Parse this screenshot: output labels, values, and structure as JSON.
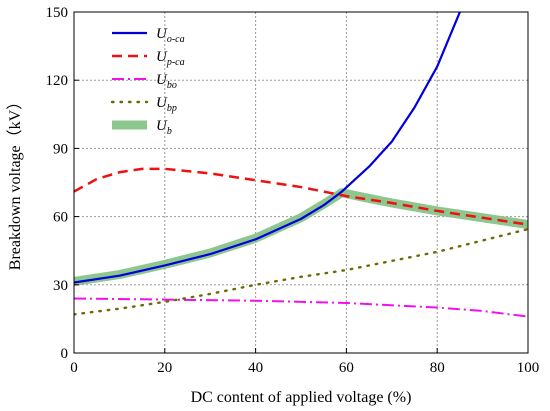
{
  "chart_data": {
    "type": "line",
    "xlabel": "DC content of applied voltage (%)",
    "ylabel": "Breakdown voltage（kV）",
    "xlim": [
      0,
      100
    ],
    "ylim": [
      0,
      150
    ],
    "x_ticks": [
      "0",
      "20",
      "40",
      "60",
      "80",
      "100"
    ],
    "y_ticks": [
      "0",
      "30",
      "60",
      "90",
      "120",
      "150"
    ],
    "grid": true,
    "legend_position": "top-left",
    "series": [
      {
        "name": "U",
        "name_sub": "o-ca",
        "color": "#0000dd",
        "style": "solid",
        "points": [
          [
            0,
            31
          ],
          [
            10,
            34
          ],
          [
            20,
            38.5
          ],
          [
            30,
            43.5
          ],
          [
            40,
            50
          ],
          [
            50,
            59
          ],
          [
            55,
            65
          ],
          [
            59,
            71
          ],
          [
            65,
            82
          ],
          [
            70,
            93
          ],
          [
            75,
            108
          ],
          [
            80,
            126
          ],
          [
            85,
            150
          ]
        ]
      },
      {
        "name": "U",
        "name_sub": "p-ca",
        "color": "#ee1111",
        "style": "dashed",
        "points": [
          [
            0,
            71
          ],
          [
            5,
            76.5
          ],
          [
            10,
            79.5
          ],
          [
            15,
            81
          ],
          [
            20,
            81
          ],
          [
            25,
            80
          ],
          [
            30,
            79
          ],
          [
            40,
            76
          ],
          [
            50,
            73
          ],
          [
            60,
            69
          ],
          [
            70,
            66
          ],
          [
            80,
            62.5
          ],
          [
            90,
            59.5
          ],
          [
            100,
            56.5
          ]
        ]
      },
      {
        "name": "U",
        "name_sub": "bo",
        "color": "#ee11ee",
        "style": "dashdot",
        "points": [
          [
            0,
            24
          ],
          [
            20,
            23.5
          ],
          [
            40,
            23
          ],
          [
            60,
            22
          ],
          [
            80,
            20
          ],
          [
            90,
            18.5
          ],
          [
            100,
            16
          ]
        ]
      },
      {
        "name": "U",
        "name_sub": "bp",
        "color": "#6b6b00",
        "style": "dotted",
        "points": [
          [
            0,
            17
          ],
          [
            10,
            19.5
          ],
          [
            20,
            22.5
          ],
          [
            30,
            26
          ],
          [
            40,
            30
          ],
          [
            50,
            33.5
          ],
          [
            60,
            36.5
          ],
          [
            70,
            40.5
          ],
          [
            80,
            44.5
          ],
          [
            90,
            49.5
          ],
          [
            100,
            54.5
          ]
        ]
      },
      {
        "name": "U",
        "name_sub": "b",
        "color": "#88c488",
        "style": "thick",
        "points": [
          [
            0,
            31.5
          ],
          [
            10,
            34.5
          ],
          [
            20,
            39
          ],
          [
            30,
            44
          ],
          [
            40,
            50.5
          ],
          [
            50,
            59.5
          ],
          [
            55,
            65.5
          ],
          [
            59,
            70.5
          ],
          [
            65,
            68
          ],
          [
            70,
            66
          ],
          [
            80,
            62.5
          ],
          [
            90,
            59.5
          ],
          [
            100,
            56.5
          ]
        ]
      }
    ]
  }
}
